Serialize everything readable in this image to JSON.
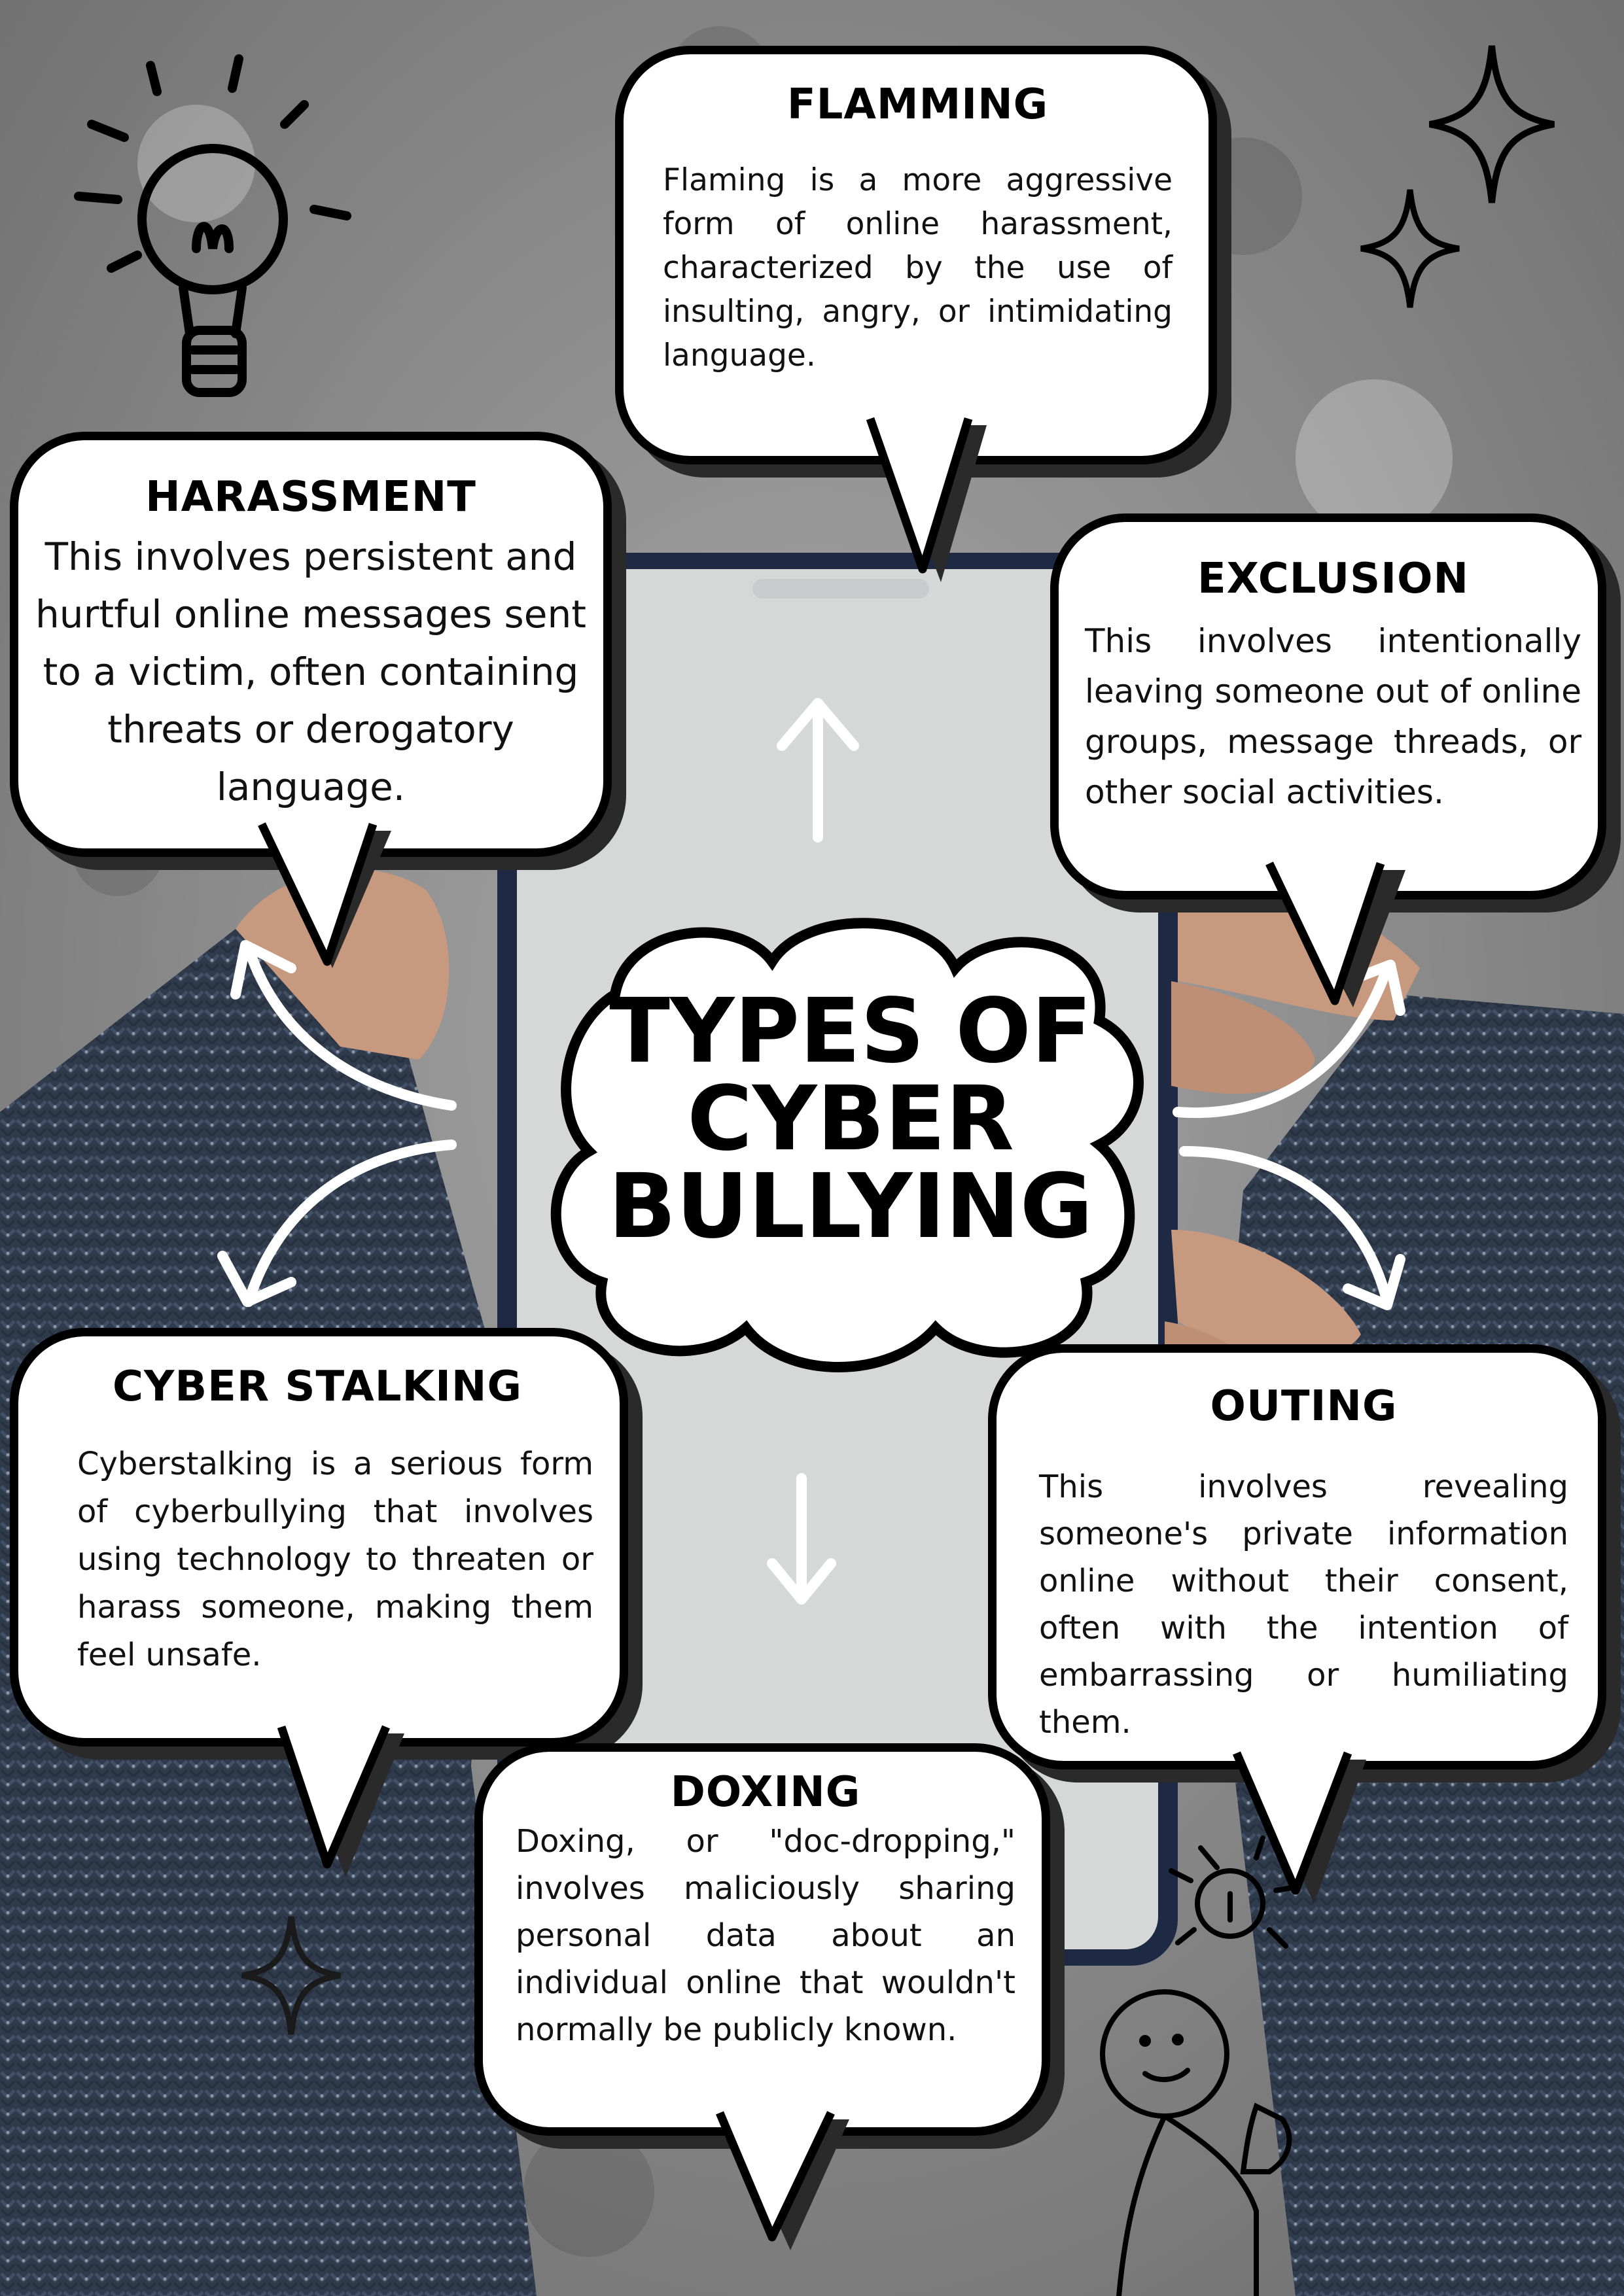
{
  "title": "TYPES OF CYBER BULLYING",
  "cards": {
    "flamming": {
      "heading": "FLAMMING",
      "body": "Flaming is a more aggressive form of online harassment, characterized by the use of insulting, angry, or intimidating language."
    },
    "harassment": {
      "heading": "HARASSMENT",
      "body": "This involves persistent and hurtful online messages sent to a victim, often containing threats or derogatory language."
    },
    "exclusion": {
      "heading": "EXCLUSION",
      "body": "This involves intentionally leaving someone out of online groups, message threads, or other social activities."
    },
    "cyber_stalking": {
      "heading": "CYBER STALKING",
      "body": "Cyberstalking is a serious form of cyberbullying that involves using technology to threaten or harass someone, making them feel unsafe."
    },
    "outing": {
      "heading": "OUTING",
      "body": "This involves revealing someone's private information online without their consent, often with the intention of embarrassing or humiliating them."
    },
    "doxing": {
      "heading": "DOXING",
      "body": "Doxing, or \"doc-dropping,\" involves maliciously sharing personal data about an individual online that wouldn't normally be publicly known."
    }
  },
  "icons": [
    "lightbulb-icon",
    "sparkle-icon",
    "arrow-icon",
    "stick-figure-icon"
  ],
  "colors": {
    "background": "#8e8e8e",
    "bubble": "#ffffff",
    "outline": "#000000",
    "sweater": "#2f3a4a",
    "screen": "#d6d8d8",
    "skin": "#c79a80"
  }
}
